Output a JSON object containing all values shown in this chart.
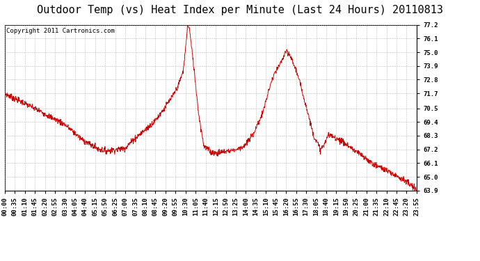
{
  "title": "Outdoor Temp (vs) Heat Index per Minute (Last 24 Hours) 20110813",
  "copyright": "Copyright 2011 Cartronics.com",
  "line_color": "#cc0000",
  "background_color": "#ffffff",
  "plot_bg_color": "#ffffff",
  "grid_color": "#aaaaaa",
  "ymin": 63.9,
  "ymax": 77.2,
  "yticks": [
    63.9,
    65.0,
    66.1,
    67.2,
    68.3,
    69.4,
    70.5,
    71.7,
    72.8,
    73.9,
    75.0,
    76.1,
    77.2
  ],
  "xtick_labels": [
    "00:00",
    "00:35",
    "01:10",
    "01:45",
    "02:20",
    "02:55",
    "03:30",
    "04:05",
    "04:40",
    "05:15",
    "05:50",
    "06:25",
    "07:00",
    "07:35",
    "08:10",
    "08:45",
    "09:20",
    "09:55",
    "10:30",
    "11:05",
    "11:40",
    "12:15",
    "12:50",
    "13:25",
    "14:00",
    "14:35",
    "15:10",
    "15:45",
    "16:20",
    "16:55",
    "17:30",
    "18:05",
    "18:40",
    "19:15",
    "19:50",
    "20:25",
    "21:00",
    "21:35",
    "22:10",
    "22:45",
    "23:20",
    "23:55"
  ],
  "title_fontsize": 11,
  "tick_fontsize": 6.5,
  "copyright_fontsize": 6.5,
  "key_times": [
    0,
    0.4,
    1.0,
    2.0,
    3.5,
    4.5,
    5.1,
    5.5,
    5.9,
    6.3,
    7.0,
    7.5,
    8.2,
    8.7,
    9.3,
    9.8,
    10.1,
    10.4,
    10.55,
    10.65,
    10.75,
    11.0,
    11.3,
    11.6,
    12.0,
    12.3,
    12.7,
    13.1,
    13.5,
    14.0,
    14.5,
    15.0,
    15.5,
    15.8,
    16.0,
    16.2,
    16.35,
    16.6,
    17.0,
    17.5,
    18.0,
    18.4,
    18.6,
    18.8,
    19.0,
    19.5,
    20.0,
    20.5,
    21.0,
    21.5,
    22.0,
    22.5,
    23.0,
    23.5,
    24.0
  ],
  "key_vals": [
    71.7,
    71.4,
    71.0,
    70.3,
    69.2,
    68.0,
    67.5,
    67.2,
    67.1,
    67.15,
    67.3,
    68.0,
    68.8,
    69.4,
    70.5,
    71.5,
    72.3,
    73.5,
    75.5,
    77.2,
    77.0,
    74.0,
    70.0,
    67.5,
    67.0,
    66.9,
    67.0,
    67.1,
    67.2,
    67.5,
    68.5,
    70.0,
    72.5,
    73.5,
    73.9,
    74.5,
    75.0,
    74.8,
    73.5,
    71.0,
    68.3,
    67.2,
    67.5,
    68.3,
    68.3,
    68.0,
    67.5,
    67.0,
    66.5,
    66.0,
    65.7,
    65.3,
    65.0,
    64.5,
    63.9
  ]
}
